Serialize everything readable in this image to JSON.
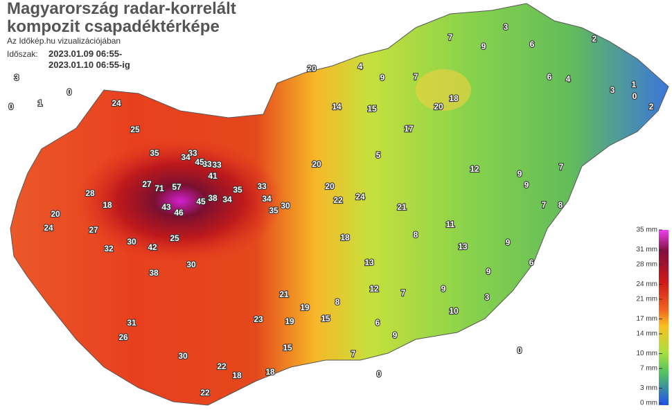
{
  "header": {
    "title_lines": [
      "Magyarország radar-korrelált",
      "kompozit csapadéktérképe"
    ],
    "subtitle": "Az Időkép.hu vizualizációjában",
    "period_label": "Időszak:",
    "period_lines": [
      "2023.01.09 06:55-",
      "2023.01.10 06:55-ig"
    ]
  },
  "legend": {
    "ticks": [
      {
        "value": 35,
        "label": "35 mm"
      },
      {
        "value": 31,
        "label": "31 mm"
      },
      {
        "value": 28,
        "label": "28 mm"
      },
      {
        "value": 24,
        "label": "24 mm"
      },
      {
        "value": 21,
        "label": "21 mm"
      },
      {
        "value": 17,
        "label": "17 mm"
      },
      {
        "value": 14,
        "label": "14 mm"
      },
      {
        "value": 10,
        "label": "10 mm"
      },
      {
        "value": 7,
        "label": "7 mm"
      },
      {
        "value": 3,
        "label": "3 mm"
      },
      {
        "value": 0,
        "label": "0 mm"
      }
    ]
  },
  "stations": [
    71,
    57,
    27,
    43,
    46,
    45,
    38,
    34,
    35,
    33,
    34,
    35,
    30,
    33,
    33,
    45,
    33,
    34,
    41,
    35,
    25,
    24,
    28,
    18,
    20,
    24,
    27,
    32,
    30,
    42,
    38,
    30,
    25,
    31,
    26,
    30,
    22,
    22,
    18,
    23,
    21,
    19,
    14,
    15,
    5,
    17,
    20,
    18,
    7,
    9,
    4,
    7,
    9,
    3,
    6,
    2,
    1,
    3,
    0,
    2,
    4,
    6,
    7,
    9,
    12,
    11,
    13,
    8,
    21,
    24,
    22,
    20,
    20,
    18,
    13,
    12,
    7,
    9,
    9,
    3,
    10,
    6,
    9,
    8,
    19,
    15,
    15,
    18,
    9,
    7,
    8,
    6,
    9,
    20,
    0,
    1,
    0,
    3,
    0,
    0,
    7
  ]
}
